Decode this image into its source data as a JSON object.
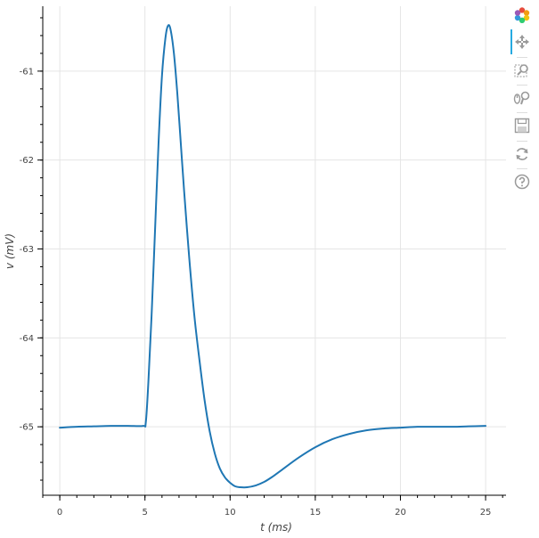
{
  "chart_data": {
    "type": "line",
    "title": "",
    "xlabel": "t (ms)",
    "ylabel": "v (mV)",
    "xlim": [
      -1.0,
      26.2
    ],
    "ylim": [
      -65.77,
      -60.27
    ],
    "x_ticks": [
      0,
      5,
      10,
      15,
      20,
      25
    ],
    "x_tick_labels": [
      "0",
      "5",
      "10",
      "15",
      "20",
      "25"
    ],
    "x_minor_step": 1,
    "y_ticks": [
      -65,
      -64,
      -63,
      -62,
      -61
    ],
    "y_tick_labels": [
      "-65",
      "-64",
      "-63",
      "-62",
      "-61"
    ],
    "y_minor_step": 0.2,
    "grid": true,
    "legend": "none",
    "line_color": "#1f77b4",
    "series": [
      {
        "x": [
          0,
          1,
          2,
          3,
          4,
          4.9,
          5.05,
          5.2,
          5.4,
          5.6,
          5.8,
          6.0,
          6.2,
          6.35,
          6.5,
          6.7,
          6.9,
          7.1,
          7.3,
          7.6,
          7.9,
          8.2,
          8.5,
          8.8,
          9.1,
          9.4,
          9.7,
          10.0,
          10.3,
          10.6,
          11.0,
          11.5,
          12.0,
          12.5,
          13.0,
          14.0,
          15.0,
          16.0,
          17.0,
          18.0,
          19.0,
          20.0,
          21.0,
          22.0,
          23.0,
          24.0,
          25.0
        ],
        "y": [
          -65.01,
          -65.0,
          -64.995,
          -64.99,
          -64.99,
          -64.99,
          -64.95,
          -64.5,
          -63.7,
          -62.75,
          -61.8,
          -61.05,
          -60.63,
          -60.49,
          -60.53,
          -60.8,
          -61.25,
          -61.8,
          -62.35,
          -63.1,
          -63.75,
          -64.25,
          -64.7,
          -65.05,
          -65.3,
          -65.47,
          -65.57,
          -65.63,
          -65.67,
          -65.68,
          -65.68,
          -65.66,
          -65.62,
          -65.56,
          -65.49,
          -65.35,
          -65.23,
          -65.14,
          -65.08,
          -65.04,
          -65.02,
          -65.01,
          -65.0,
          -65.0,
          -65.0,
          -64.995,
          -64.99
        ]
      }
    ]
  },
  "toolbar": {
    "tools": [
      "bokeh-logo-icon",
      "pan-icon",
      "box-zoom-icon",
      "wheel-zoom-icon",
      "save-icon",
      "reset-icon",
      "help-icon"
    ],
    "active_tool": "pan-icon"
  }
}
